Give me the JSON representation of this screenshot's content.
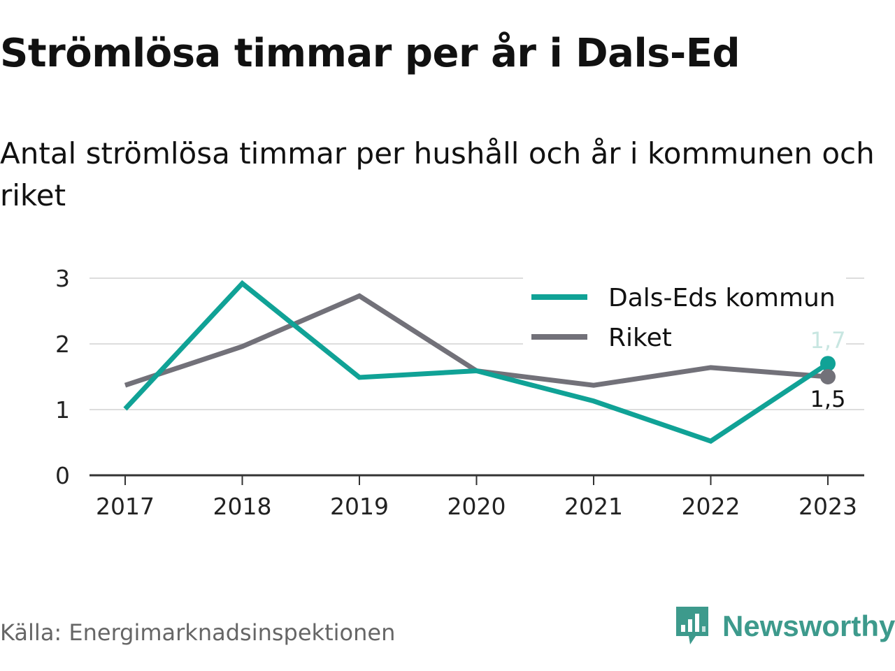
{
  "header": {
    "title": "Strömlösa timmar per år i Dals-Ed",
    "subtitle": "Antal strömlösa timmar per hushåll och år i kommunen och riket"
  },
  "footer": {
    "source": "Källa: Energimarknadsinspektionen",
    "brand": "Newsworthy"
  },
  "chart_data": {
    "type": "line",
    "title": "Strömlösa timmar per år i Dals-Ed",
    "subtitle": "Antal strömlösa timmar per hushåll och år i kommunen och riket",
    "xlabel": "",
    "ylabel": "",
    "categories": [
      "2017",
      "2018",
      "2019",
      "2020",
      "2021",
      "2022",
      "2023"
    ],
    "yticks": [
      0,
      1,
      2,
      3
    ],
    "ylim": [
      0,
      3
    ],
    "grid": true,
    "legend_position": "top-right",
    "series": [
      {
        "name": "Dals-Eds kommun",
        "color": "#10a296",
        "values": [
          1.01,
          2.92,
          1.49,
          1.59,
          1.13,
          0.52,
          1.7
        ],
        "end_label": "1,7"
      },
      {
        "name": "Riket",
        "color": "#727179",
        "values": [
          1.37,
          1.96,
          2.73,
          1.59,
          1.37,
          1.64,
          1.5
        ],
        "end_label": "1,5"
      }
    ]
  },
  "colors": {
    "grid": "#dddddd",
    "axis": "#333333",
    "brand": "#3d9a8c"
  },
  "icons": {
    "brand_logo": "newsworthy-logo-icon"
  }
}
